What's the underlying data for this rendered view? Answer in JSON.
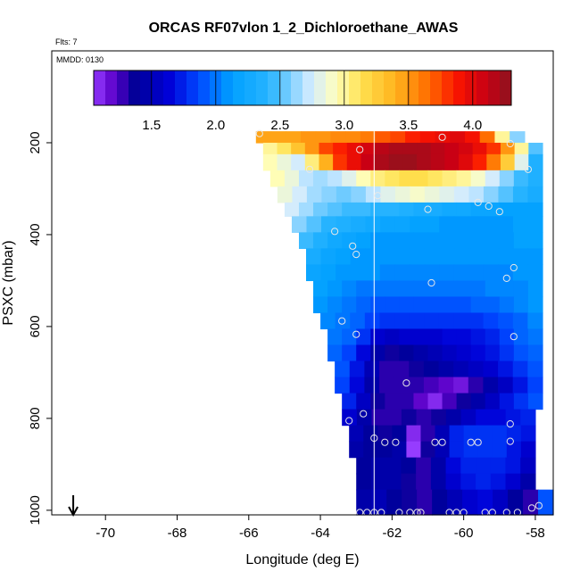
{
  "chart_data": {
    "type": "heatmap",
    "title": "ORCAS RF07vlon 1_2_Dichloroethane_AWAS",
    "flts_text": "Flts: 7",
    "mmdd_text": "MMDD: 0130",
    "xlabel": "Longitude (deg E)",
    "ylabel": "PSXC (mbar)",
    "xlim": [
      -71.5,
      -57.5
    ],
    "ylim": [
      1010,
      0
    ],
    "xticks": [
      -70,
      -68,
      -66,
      -64,
      -62,
      -60,
      -58
    ],
    "yticks": [
      200,
      400,
      600,
      800,
      1000
    ],
    "colorbar": {
      "range": [
        1.05,
        4.3
      ],
      "ticks": [
        1.5,
        2.0,
        2.5,
        3.0,
        3.5,
        4.0
      ],
      "tick_labels": [
        "1.5",
        "2.0",
        "2.5",
        "3.0",
        "3.5",
        "4.0"
      ]
    },
    "vertical_line_lon": -62.5,
    "arrow_lon": -70.9,
    "layers": [
      {
        "p_top": 175,
        "p_bot": 200,
        "lon_min": -65.8,
        "lon_max": -58.3,
        "values": [
          3.45,
          3.45,
          3.45,
          3.5,
          3.5,
          3.55,
          3.55,
          3.6,
          3.7,
          3.75,
          3.85,
          3.9,
          3.95,
          4.0,
          3.9,
          3.65,
          3.0,
          2.6
        ]
      },
      {
        "p_top": 200,
        "p_bot": 225,
        "lon_min": -65.6,
        "lon_max": -57.8,
        "values": [
          3.0,
          3.1,
          3.3,
          3.5,
          3.75,
          3.85,
          3.95,
          4.05,
          4.15,
          4.2,
          4.2,
          4.2,
          4.15,
          4.1,
          4.05,
          3.95,
          3.8,
          3.5,
          3.0,
          2.5
        ]
      },
      {
        "p_top": 225,
        "p_bot": 260,
        "lon_min": -65.6,
        "lon_max": -57.8,
        "values": [
          2.95,
          2.85,
          2.75,
          3.05,
          3.4,
          3.8,
          3.95,
          4.1,
          4.2,
          4.25,
          4.25,
          4.2,
          4.15,
          4.1,
          4.0,
          3.85,
          3.6,
          3.25,
          2.8,
          2.35
        ]
      },
      {
        "p_top": 260,
        "p_bot": 295,
        "lon_min": -65.4,
        "lon_max": -57.8,
        "values": [
          2.95,
          2.85,
          2.7,
          2.65,
          2.7,
          2.8,
          2.95,
          3.05,
          3.1,
          3.15,
          3.15,
          3.1,
          3.05,
          3.0,
          2.9,
          2.75,
          2.6,
          2.45,
          2.35
        ]
      },
      {
        "p_top": 295,
        "p_bot": 330,
        "lon_min": -65.2,
        "lon_max": -57.8,
        "values": [
          2.85,
          2.75,
          2.65,
          2.6,
          2.55,
          2.6,
          2.7,
          2.8,
          2.85,
          2.9,
          2.85,
          2.8,
          2.75,
          2.7,
          2.6,
          2.5,
          2.4,
          2.3
        ]
      },
      {
        "p_top": 330,
        "p_bot": 360,
        "lon_min": -65.0,
        "lon_max": -57.8,
        "values": [
          2.75,
          2.65,
          2.55,
          2.5,
          2.45,
          2.45,
          2.4,
          2.4,
          2.35,
          2.3,
          2.3,
          2.25,
          2.25,
          2.2,
          2.2,
          2.15,
          2.15,
          2.15
        ]
      },
      {
        "p_top": 360,
        "p_bot": 395,
        "lon_min": -64.8,
        "lon_max": -57.8,
        "values": [
          2.6,
          2.5,
          2.4,
          2.35,
          2.3,
          2.25,
          2.2,
          2.2,
          2.15,
          2.15,
          2.1,
          2.1,
          2.1,
          2.1,
          2.1,
          2.15,
          2.15
        ]
      },
      {
        "p_top": 395,
        "p_bot": 430,
        "lon_min": -64.6,
        "lon_max": -57.8,
        "values": [
          2.45,
          2.35,
          2.25,
          2.2,
          2.15,
          2.1,
          2.1,
          2.1,
          2.1,
          2.1,
          2.1,
          2.1,
          2.1,
          2.1,
          2.1,
          2.15,
          2.15
        ]
      },
      {
        "p_top": 430,
        "p_bot": 465,
        "lon_min": -64.4,
        "lon_max": -57.8,
        "values": [
          2.3,
          2.2,
          2.15,
          2.1,
          2.1,
          2.1,
          2.1,
          2.1,
          2.1,
          2.1,
          2.1,
          2.1,
          2.1,
          2.1,
          2.1,
          2.1
        ]
      },
      {
        "p_top": 465,
        "p_bot": 500,
        "lon_min": -64.4,
        "lon_max": -57.8,
        "values": [
          2.2,
          2.15,
          2.1,
          2.1,
          2.1,
          2.05,
          2.05,
          2.05,
          2.05,
          2.05,
          2.05,
          2.05,
          2.05,
          2.05,
          2.1,
          2.1
        ]
      },
      {
        "p_top": 500,
        "p_bot": 535,
        "lon_min": -64.2,
        "lon_max": -57.8,
        "values": [
          2.15,
          2.1,
          2.05,
          2.0,
          2.0,
          2.0,
          2.0,
          2.0,
          2.0,
          2.0,
          2.0,
          2.0,
          2.05,
          2.05,
          2.05,
          2.1
        ]
      },
      {
        "p_top": 535,
        "p_bot": 570,
        "lon_min": -64.2,
        "lon_max": -57.8,
        "values": [
          2.1,
          2.05,
          2.0,
          1.95,
          1.9,
          1.9,
          1.9,
          1.9,
          1.9,
          1.9,
          1.9,
          1.95,
          1.95,
          2.0,
          2.05,
          2.1
        ]
      },
      {
        "p_top": 570,
        "p_bot": 605,
        "lon_min": -64.0,
        "lon_max": -57.8,
        "values": [
          2.05,
          2.0,
          1.95,
          1.85,
          1.8,
          1.8,
          1.8,
          1.8,
          1.8,
          1.8,
          1.8,
          1.85,
          1.9,
          1.95,
          2.05
        ]
      },
      {
        "p_top": 605,
        "p_bot": 640,
        "lon_min": -63.8,
        "lon_max": -57.8,
        "values": [
          2.0,
          1.95,
          1.8,
          1.6,
          1.55,
          1.6,
          1.6,
          1.6,
          1.65,
          1.65,
          1.7,
          1.75,
          1.85,
          1.95,
          2.0
        ]
      },
      {
        "p_top": 640,
        "p_bot": 675,
        "lon_min": -63.8,
        "lon_max": -57.8,
        "values": [
          1.95,
          1.85,
          1.65,
          1.45,
          1.35,
          1.4,
          1.45,
          1.5,
          1.55,
          1.6,
          1.65,
          1.7,
          1.8,
          1.9,
          1.95
        ]
      },
      {
        "p_top": 675,
        "p_bot": 710,
        "lon_min": -63.6,
        "lon_max": -57.8,
        "values": [
          1.9,
          1.7,
          1.5,
          1.3,
          1.3,
          1.35,
          1.4,
          1.45,
          1.5,
          1.55,
          1.6,
          1.7,
          1.8,
          1.9
        ]
      },
      {
        "p_top": 710,
        "p_bot": 745,
        "lon_min": -63.6,
        "lon_max": -57.8,
        "values": [
          1.85,
          1.65,
          1.45,
          1.3,
          1.3,
          1.3,
          1.25,
          1.2,
          1.15,
          1.3,
          1.45,
          1.55,
          1.7,
          1.85
        ]
      },
      {
        "p_top": 745,
        "p_bot": 780,
        "lon_min": -63.4,
        "lon_max": -57.8,
        "values": [
          1.75,
          1.55,
          1.35,
          1.3,
          1.3,
          1.2,
          1.1,
          1.25,
          1.35,
          1.45,
          1.55,
          1.7,
          1.8,
          1.9
        ]
      },
      {
        "p_top": 780,
        "p_bot": 815,
        "lon_min": -63.4,
        "lon_max": -58.0,
        "values": [
          1.6,
          1.45,
          1.3,
          1.3,
          1.35,
          1.3,
          1.35,
          1.45,
          1.55,
          1.65,
          1.65,
          1.7,
          1.75
        ]
      },
      {
        "p_top": 815,
        "p_bot": 850,
        "lon_min": -63.2,
        "lon_max": -58.0,
        "values": [
          1.5,
          1.4,
          1.35,
          1.4,
          1.1,
          1.3,
          1.5,
          1.75,
          1.8,
          1.8,
          1.8,
          1.75,
          1.7
        ]
      },
      {
        "p_top": 850,
        "p_bot": 885,
        "lon_min": -63.2,
        "lon_max": -58.0,
        "values": [
          1.45,
          1.4,
          1.4,
          1.45,
          1.05,
          1.35,
          1.5,
          1.75,
          1.8,
          1.8,
          1.8,
          1.7,
          1.6
        ]
      },
      {
        "p_top": 885,
        "p_bot": 920,
        "lon_min": -63.0,
        "lon_max": -58.0,
        "values": [
          1.4,
          1.45,
          1.45,
          1.4,
          1.3,
          1.45,
          1.65,
          1.75,
          1.75,
          1.75,
          1.7,
          1.55
        ]
      },
      {
        "p_top": 920,
        "p_bot": 955,
        "lon_min": -63.0,
        "lon_max": -58.0,
        "values": [
          1.4,
          1.45,
          1.45,
          1.35,
          1.3,
          1.45,
          1.6,
          1.7,
          1.75,
          1.7,
          1.6,
          1.45
        ]
      },
      {
        "p_top": 955,
        "p_bot": 1010,
        "lon_min": -63.0,
        "lon_max": -57.5,
        "values": [
          1.45,
          1.5,
          1.4,
          1.35,
          1.3,
          1.4,
          1.5,
          1.6,
          1.65,
          1.55,
          1.4,
          1.3,
          1.9
        ]
      }
    ],
    "sample_points": [
      [
        -65.7,
        180
      ],
      [
        -62.9,
        215
      ],
      [
        -60.6,
        188
      ],
      [
        -58.7,
        202
      ],
      [
        -58.2,
        258
      ],
      [
        -64.3,
        258
      ],
      [
        -62.4,
        315
      ],
      [
        -61.0,
        345
      ],
      [
        -59.6,
        330
      ],
      [
        -59.3,
        338
      ],
      [
        -59.0,
        350
      ],
      [
        -63.6,
        393
      ],
      [
        -63.1,
        425
      ],
      [
        -63.0,
        443
      ],
      [
        -58.6,
        472
      ],
      [
        -58.8,
        495
      ],
      [
        -60.9,
        505
      ],
      [
        -63.4,
        588
      ],
      [
        -63.0,
        617
      ],
      [
        -58.6,
        622
      ],
      [
        -61.6,
        723
      ],
      [
        -62.8,
        790
      ],
      [
        -63.2,
        805
      ],
      [
        -58.7,
        812
      ],
      [
        -62.5,
        843
      ],
      [
        -62.2,
        852
      ],
      [
        -61.9,
        852
      ],
      [
        -60.8,
        852
      ],
      [
        -60.6,
        852
      ],
      [
        -59.8,
        852
      ],
      [
        -59.6,
        852
      ],
      [
        -58.7,
        850
      ],
      [
        -62.9,
        1005
      ],
      [
        -62.7,
        1005
      ],
      [
        -62.5,
        1005
      ],
      [
        -62.3,
        1005
      ],
      [
        -61.8,
        1005
      ],
      [
        -61.5,
        1005
      ],
      [
        -61.3,
        1005
      ],
      [
        -61.2,
        1005
      ],
      [
        -60.4,
        1005
      ],
      [
        -60.2,
        1005
      ],
      [
        -60.0,
        1005
      ],
      [
        -59.4,
        1005
      ],
      [
        -59.2,
        1005
      ],
      [
        -58.8,
        1005
      ],
      [
        -58.5,
        1005
      ],
      [
        -58.1,
        995
      ],
      [
        -57.9,
        990
      ]
    ]
  }
}
